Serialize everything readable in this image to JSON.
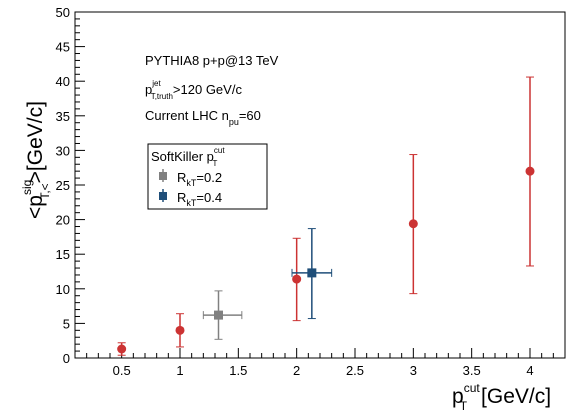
{
  "chart_data": {
    "type": "scatter",
    "xlabel": {
      "base": "p",
      "sup": "cut",
      "sub": "T",
      "unit": "[GeV/c]"
    },
    "ylabel": {
      "pre": "<p",
      "sup": "sig",
      "sub": "T,<",
      "post": ">[GeV/c]"
    },
    "xlim": [
      0.1,
      4.3
    ],
    "ylim": [
      0,
      50
    ],
    "x_ticks": [
      "0.5",
      "1",
      "1.5",
      "2",
      "2.5",
      "3",
      "3.5",
      "4"
    ],
    "y_ticks": [
      "0",
      "5",
      "10",
      "15",
      "20",
      "25",
      "30",
      "35",
      "40",
      "45",
      "50"
    ],
    "grid": false,
    "annotations": {
      "line1": "PYTHIA8 p+p@13 TeV",
      "line2": {
        "base": "p",
        "sup": "jet",
        "sub": "T,truth",
        "rest": ">120 GeV/c"
      },
      "line3": {
        "pre": "Current LHC n",
        "sub": "pu",
        "post": "=60"
      }
    },
    "legend": {
      "title": {
        "base": "SoftKiller p",
        "sup": "cut",
        "sub": "T"
      },
      "entries": [
        {
          "base": "R",
          "sub": "kT",
          "rest": "=0.2",
          "color": "#808080",
          "marker": "square"
        },
        {
          "base": "R",
          "sub": "kT",
          "rest": "=0.4",
          "color": "#1f4e79",
          "marker": "square"
        }
      ],
      "placement": "upper-left"
    },
    "series": [
      {
        "color": "#cc3333",
        "marker": "circle",
        "points": [
          {
            "x": 0.5,
            "y": 1.3,
            "ylo": 0.4,
            "yhi": 2.2
          },
          {
            "x": 1.0,
            "y": 4.0,
            "ylo": 1.6,
            "yhi": 6.4
          },
          {
            "x": 2.0,
            "y": 11.4,
            "ylo": 5.4,
            "yhi": 17.3
          },
          {
            "x": 3.0,
            "y": 19.4,
            "ylo": 9.3,
            "yhi": 29.4
          },
          {
            "x": 4.0,
            "y": 27.0,
            "ylo": 13.3,
            "yhi": 40.6
          }
        ]
      },
      {
        "name": "R_kT=0.2",
        "color": "#808080",
        "marker": "square",
        "points": [
          {
            "x": 1.33,
            "y": 6.2,
            "xlo": 1.2,
            "xhi": 1.53,
            "ylo": 2.7,
            "yhi": 9.7
          }
        ]
      },
      {
        "name": "R_kT=0.4",
        "color": "#1f4e79",
        "marker": "square",
        "points": [
          {
            "x": 2.13,
            "y": 12.3,
            "xlo": 1.96,
            "xhi": 2.3,
            "ylo": 5.7,
            "yhi": 18.7
          }
        ]
      }
    ]
  }
}
